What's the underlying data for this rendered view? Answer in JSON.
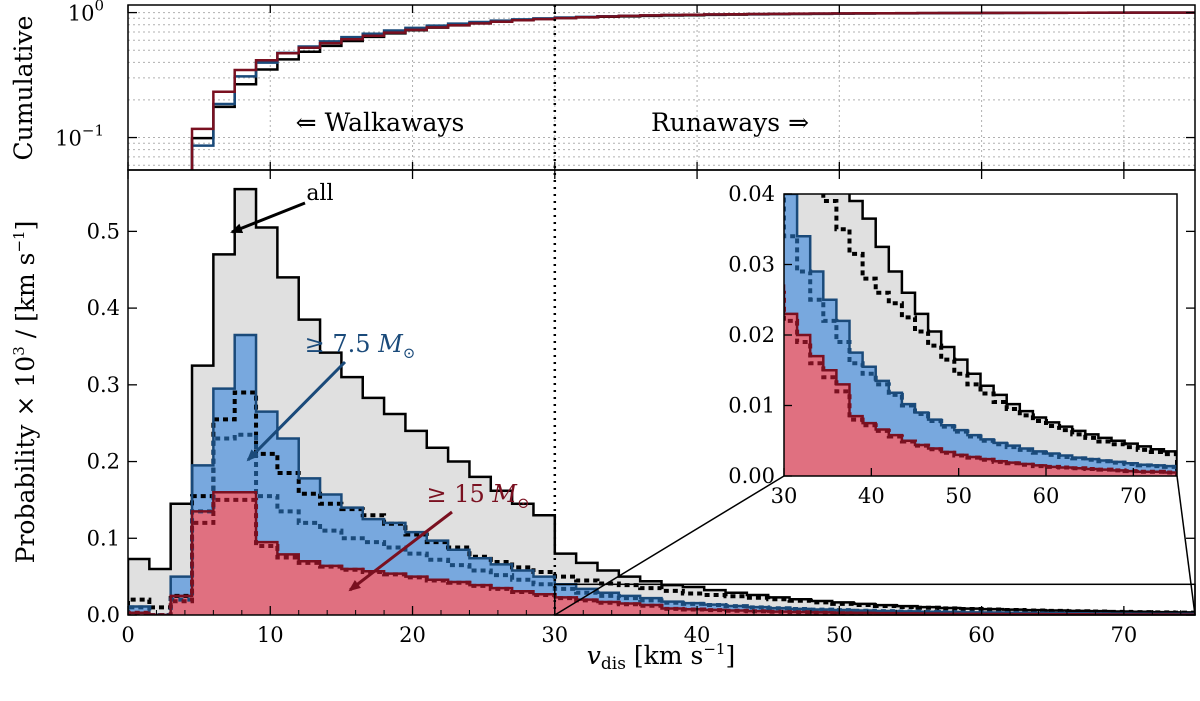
{
  "chart_data": {
    "type": "histogram",
    "colors": {
      "all_fill": "#e0e0e0",
      "all_line": "#000000",
      "mid_fill": "#78a8de",
      "mid_line": "#1a4a7a",
      "high_fill": "#e07080",
      "high_line": "#7a1020",
      "arrow_blue": "#1a4a7a",
      "arrow_red": "#7a1020"
    },
    "bin_width": 1.5,
    "main": {
      "xlim": [
        0,
        75
      ],
      "ylim": [
        0,
        0.58
      ],
      "xticks": [
        0,
        10,
        20,
        30,
        40,
        50,
        60,
        70
      ],
      "yticks": [
        0.0,
        0.1,
        0.2,
        0.3,
        0.4,
        0.5
      ],
      "xtick_labels": [
        "0",
        "10",
        "20",
        "30",
        "40",
        "50",
        "60",
        "70"
      ],
      "ytick_labels": [
        "0.0",
        "0.1",
        "0.2",
        "0.3",
        "0.4",
        "0.5"
      ],
      "xlabel_sym": "v",
      "xlabel_sub": "dis",
      "xlabel_unit": "[km s",
      "xlabel_exp": "−1",
      "xlabel_close": "]",
      "ylabel_pre": "Probability × 10",
      "ylabel_exp1": "3",
      "ylabel_mid": " / [km s",
      "ylabel_exp2": "−1",
      "ylabel_close": "]",
      "divider_x": 30
    },
    "cumulative": {
      "ylabel": "Cumulative",
      "yscale": "log",
      "ylim": [
        0.055,
        1.15
      ],
      "ytick_base": "10",
      "ytick_exps": [
        "−1",
        "0"
      ],
      "yticks": [
        0.1,
        1.0
      ]
    },
    "inset": {
      "xlim": [
        30,
        75
      ],
      "ylim": [
        0,
        0.04
      ],
      "xticks": [
        30,
        40,
        50,
        60,
        70
      ],
      "yticks": [
        0.0,
        0.01,
        0.02,
        0.03,
        0.04
      ],
      "xtick_labels": [
        "30",
        "40",
        "50",
        "60",
        "70"
      ],
      "ytick_labels": [
        "0.00",
        "0.01",
        "0.02",
        "0.03",
        "0.04"
      ],
      "zoom_box_ylim": [
        0,
        0.04
      ]
    },
    "annotations": {
      "walkaways": "⇐ Walkaways",
      "runaways": "Runaways ⇒",
      "all_label": "all",
      "mid_label_prefix": "≥ 7.5",
      "high_label_prefix": "≥ 15",
      "mass_sym": "M",
      "mass_sub": "⊙"
    },
    "series": [
      {
        "name": "all",
        "style": "solid",
        "values": [
          0.073,
          0.06,
          0.145,
          0.325,
          0.47,
          0.555,
          0.505,
          0.44,
          0.385,
          0.342,
          0.31,
          0.283,
          0.262,
          0.24,
          0.218,
          0.2,
          0.18,
          0.162,
          0.145,
          0.13,
          0.08,
          0.068,
          0.058,
          0.05,
          0.044,
          0.039,
          0.0365,
          0.0325,
          0.029,
          0.026,
          0.023,
          0.0205,
          0.0183,
          0.0165,
          0.0145,
          0.0128,
          0.0115,
          0.0102,
          0.0092,
          0.0083,
          0.0076,
          0.007,
          0.0064,
          0.0059,
          0.0054,
          0.005,
          0.0046,
          0.0042,
          0.0038,
          0.0035
        ]
      },
      {
        "name": "≥ 7.5 M⊙ (solid)",
        "style": "solid",
        "values": [
          0.011,
          0.0,
          0.05,
          0.195,
          0.295,
          0.365,
          0.265,
          0.23,
          0.178,
          0.157,
          0.14,
          0.125,
          0.12,
          0.108,
          0.097,
          0.085,
          0.074,
          0.066,
          0.058,
          0.05,
          0.04,
          0.034,
          0.029,
          0.025,
          0.022,
          0.0175,
          0.0155,
          0.0135,
          0.0118,
          0.0102,
          0.009,
          0.008,
          0.0072,
          0.0065,
          0.0058,
          0.0052,
          0.0047,
          0.0043,
          0.0039,
          0.0035,
          0.0032,
          0.0029,
          0.0026,
          0.0024,
          0.0022,
          0.002,
          0.0018,
          0.0016,
          0.0015,
          0.0014
        ]
      },
      {
        "name": "≥ 15 M⊙ (solid)",
        "style": "solid",
        "values": [
          0.003,
          0.0,
          0.025,
          0.135,
          0.16,
          0.16,
          0.095,
          0.079,
          0.07,
          0.064,
          0.06,
          0.057,
          0.054,
          0.05,
          0.046,
          0.043,
          0.039,
          0.035,
          0.031,
          0.027,
          0.023,
          0.02,
          0.017,
          0.015,
          0.013,
          0.0085,
          0.0075,
          0.0066,
          0.0058,
          0.005,
          0.0044,
          0.0039,
          0.0034,
          0.003,
          0.0027,
          0.0024,
          0.0021,
          0.0019,
          0.0017,
          0.0015,
          0.0013,
          0.0012,
          0.0011,
          0.001,
          0.0009,
          0.0008,
          0.0007,
          0.0006,
          0.0006,
          0.0005
        ]
      },
      {
        "name": "all (dotted)",
        "style": "dotted",
        "values": [
          0.02,
          0.01,
          0.025,
          0.155,
          0.255,
          0.29,
          0.21,
          0.185,
          0.158,
          0.145,
          0.138,
          0.13,
          0.119,
          0.105,
          0.095,
          0.088,
          0.076,
          0.069,
          0.062,
          0.056,
          0.05,
          0.045,
          0.041,
          0.039,
          0.035,
          0.0315,
          0.028,
          0.026,
          0.0245,
          0.0225,
          0.0205,
          0.0185,
          0.0165,
          0.0145,
          0.013,
          0.0117,
          0.0105,
          0.0095,
          0.0086,
          0.0078,
          0.0071,
          0.0065,
          0.0059,
          0.0054,
          0.0049,
          0.0045,
          0.0041,
          0.0037,
          0.0034,
          0.0031
        ]
      },
      {
        "name": "≥ 7.5 M⊙ (dotted)",
        "style": "dotted",
        "values": [
          0.01,
          0.0,
          0.02,
          0.135,
          0.23,
          0.235,
          0.155,
          0.135,
          0.12,
          0.11,
          0.1,
          0.095,
          0.088,
          0.08,
          0.072,
          0.065,
          0.058,
          0.052,
          0.046,
          0.04,
          0.034,
          0.029,
          0.025,
          0.022,
          0.019,
          0.016,
          0.0145,
          0.013,
          0.0115,
          0.01,
          0.0088,
          0.0078,
          0.007,
          0.0063,
          0.0056,
          0.005,
          0.0045,
          0.0041,
          0.0037,
          0.0033,
          0.003,
          0.0027,
          0.0025,
          0.0023,
          0.0021,
          0.0019,
          0.0017,
          0.0015,
          0.0014,
          0.0013
        ]
      },
      {
        "name": "≥ 15 M⊙ (dotted)",
        "style": "dotted",
        "values": [
          0.003,
          0.0,
          0.018,
          0.12,
          0.15,
          0.15,
          0.09,
          0.075,
          0.068,
          0.063,
          0.059,
          0.056,
          0.053,
          0.049,
          0.045,
          0.042,
          0.038,
          0.034,
          0.03,
          0.026,
          0.022,
          0.019,
          0.016,
          0.014,
          0.012,
          0.008,
          0.0072,
          0.0064,
          0.0056,
          0.0049,
          0.0043,
          0.0038,
          0.0033,
          0.0029,
          0.0026,
          0.0023,
          0.002,
          0.0018,
          0.0016,
          0.0014,
          0.0013,
          0.0012,
          0.0011,
          0.001,
          0.0009,
          0.0008,
          0.0007,
          0.0006,
          0.0006,
          0.0005
        ]
      }
    ]
  }
}
